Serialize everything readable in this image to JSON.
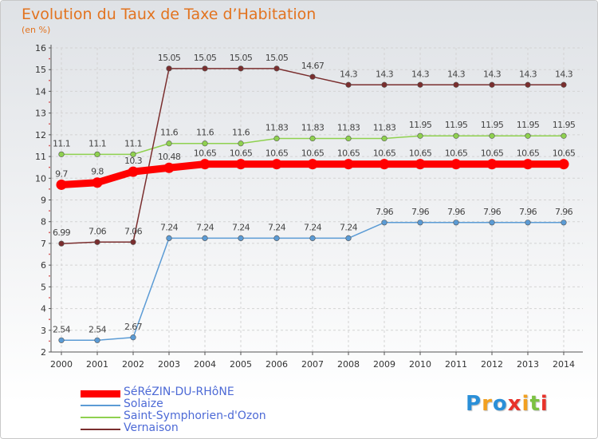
{
  "header": {
    "title": "Evolution du Taux de Taxe d’Habitation",
    "subtitle": "(en %)"
  },
  "chart_data": {
    "type": "line",
    "title": "Evolution du Taux de Taxe d’Habitation",
    "subtitle": "(en %)",
    "ylim": [
      2,
      16
    ],
    "yticks": [
      2,
      3,
      4,
      5,
      6,
      7,
      8,
      9,
      10,
      11,
      12,
      13,
      14,
      15,
      16
    ],
    "categories": [
      "2000",
      "2001",
      "2002",
      "2003",
      "2004",
      "2005",
      "2006",
      "2007",
      "2008",
      "2009",
      "2010",
      "2011",
      "2012",
      "2013",
      "2014"
    ],
    "grid": true,
    "legend_position": "bottom-left",
    "series": [
      {
        "name": "SéRéZIN-DU-RHôNE",
        "color": "#ff0000",
        "values": [
          9.7,
          9.8,
          10.3,
          10.48,
          10.65,
          10.65,
          10.65,
          10.65,
          10.65,
          10.65,
          10.65,
          10.65,
          10.65,
          10.65,
          10.65
        ],
        "labels": [
          "9.7",
          "9.8",
          "10.3",
          "10.48",
          "10.65",
          "10.65",
          "10.65",
          "10.65",
          "10.65",
          "10.65",
          "10.65",
          "10.65",
          "10.65",
          "10.65",
          "10.65"
        ]
      },
      {
        "name": "Solaize",
        "color": "#5b9bd5",
        "values": [
          2.54,
          2.54,
          2.67,
          7.24,
          7.24,
          7.24,
          7.24,
          7.24,
          7.24,
          7.96,
          7.96,
          7.96,
          7.96,
          7.96,
          7.96
        ],
        "labels": [
          "2.54",
          "2.54",
          "2.67",
          "7.24",
          "7.24",
          "7.24",
          "7.24",
          "7.24",
          "7.24",
          "7.96",
          "7.96",
          "7.96",
          "7.96",
          "7.96",
          "7.96"
        ]
      },
      {
        "name": "Saint-Symphorien-d'Ozon",
        "color": "#8fd14f",
        "values": [
          11.1,
          11.1,
          11.1,
          11.6,
          11.6,
          11.6,
          11.83,
          11.83,
          11.83,
          11.83,
          11.95,
          11.95,
          11.95,
          11.95,
          11.95
        ],
        "labels": [
          "11.1",
          "11.1",
          "11.1",
          "11.6",
          "11.6",
          "11.6",
          "11.83",
          "11.83",
          "11.83",
          "11.83",
          "11.95",
          "11.95",
          "11.95",
          "11.95",
          "11.95"
        ]
      },
      {
        "name": "Vernaison",
        "color": "#7a2e2e",
        "values": [
          6.99,
          7.06,
          7.06,
          15.05,
          15.05,
          15.05,
          15.05,
          14.67,
          14.3,
          14.3,
          14.3,
          14.3,
          14.3,
          14.3,
          14.3
        ],
        "labels": [
          "6.99",
          "7.06",
          "7.06",
          "15.05",
          "15.05",
          "15.05",
          "15.05",
          "14.67",
          "14.3",
          "14.3",
          "14.3",
          "14.3",
          "14.3",
          "14.3",
          "14.3"
        ]
      }
    ]
  },
  "legend": {
    "items": [
      {
        "label": "SéRéZIN-DU-RHôNE",
        "color": "#ff0000"
      },
      {
        "label": "Solaize",
        "color": "#5b9bd5"
      },
      {
        "label": "Saint-Symphorien-d'Ozon",
        "color": "#8fd14f"
      },
      {
        "label": "Vernaison",
        "color": "#7a2e2e"
      }
    ]
  },
  "logo": {
    "text": "Proxiti",
    "letter_colors": [
      "#2a8fd8",
      "#f2a020",
      "#2a8fd8",
      "#e8322a",
      "#f2a020",
      "#7cc242",
      "#e8322a"
    ]
  }
}
